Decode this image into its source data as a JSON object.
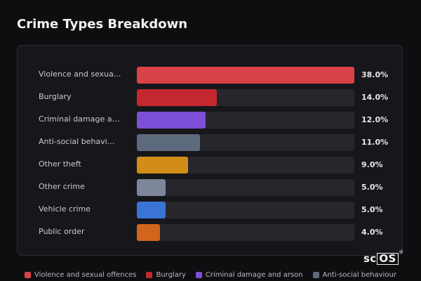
{
  "title": "Crime Types Breakdown",
  "logo": {
    "text": "sc",
    "boxed": "OS",
    "reg": "®"
  },
  "chart_data": {
    "type": "bar",
    "orientation": "horizontal",
    "title": "Crime Types Breakdown",
    "unit": "%",
    "xlim": [
      0,
      38
    ],
    "categories": [
      "Violence and sexua...",
      "Burglary",
      "Criminal damage an...",
      "Anti-social behavi...",
      "Other theft",
      "Other crime",
      "Vehicle crime",
      "Public order"
    ],
    "values": [
      38.0,
      14.0,
      12.0,
      11.0,
      9.0,
      5.0,
      5.0,
      4.0
    ],
    "value_labels": [
      "38.0%",
      "14.0%",
      "12.0%",
      "11.0%",
      "9.0%",
      "5.0%",
      "5.0%",
      "4.0%"
    ],
    "colors": [
      "#d94348",
      "#c4282f",
      "#7d4fd6",
      "#5d6a7d",
      "#d18d17",
      "#7d8799",
      "#3a74d4",
      "#d2651c"
    ],
    "legend": {
      "placement": "bottom",
      "entries": [
        {
          "name": "Violence and sexual offences",
          "color": "#d94348"
        },
        {
          "name": "Burglary",
          "color": "#c4282f"
        },
        {
          "name": "Criminal damage and arson",
          "color": "#7d4fd6"
        },
        {
          "name": "Anti-social behaviour",
          "color": "#5d6a7d"
        }
      ]
    },
    "grid": false
  }
}
